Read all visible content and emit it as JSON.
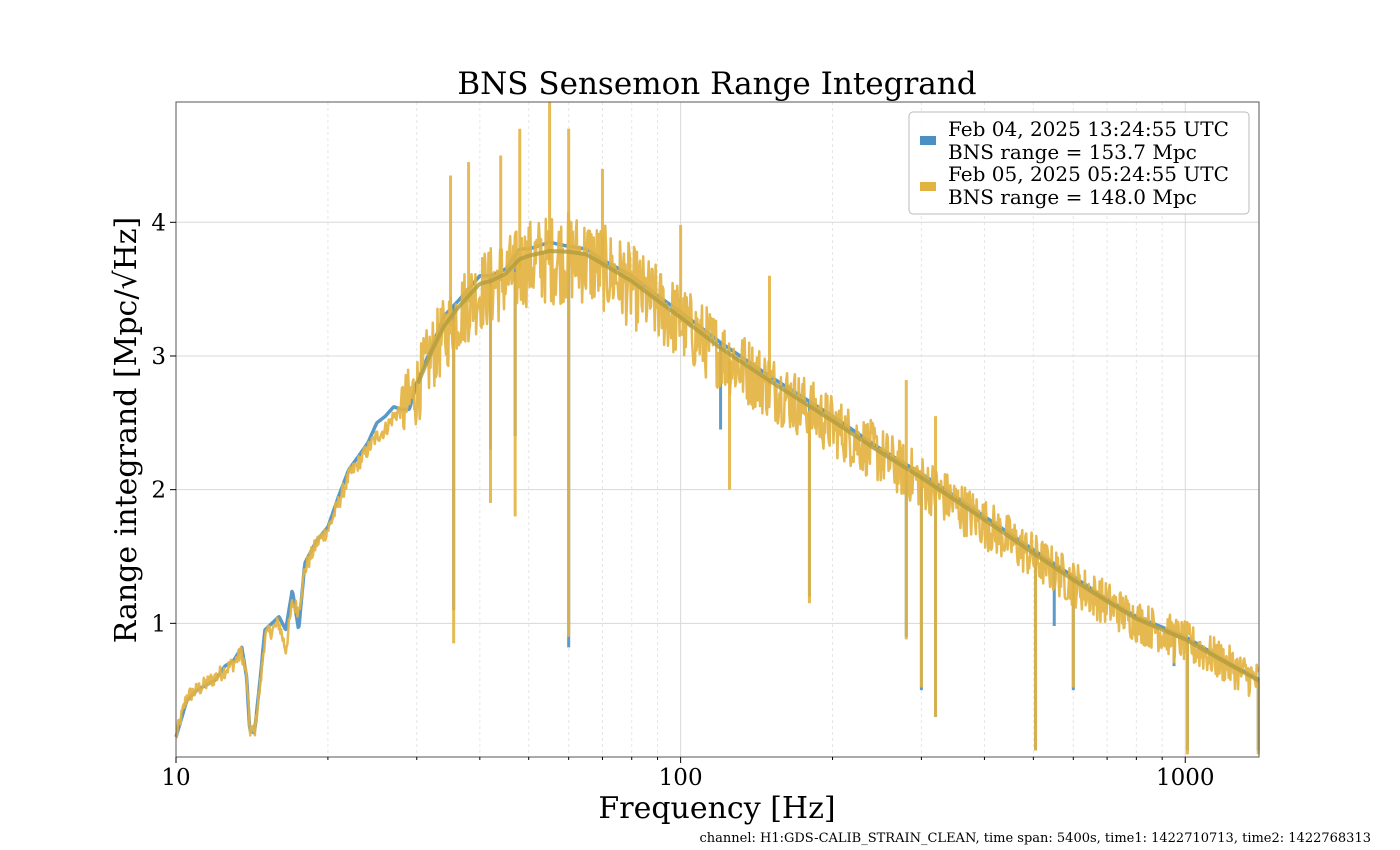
{
  "chart_data": {
    "type": "line",
    "title": "BNS Sensemon Range Integrand",
    "xlabel": "Frequency [Hz]",
    "ylabel": "Range integrand [Mpc/√Hz]",
    "xscale": "log",
    "xlim": [
      10,
      1400
    ],
    "ylim": [
      0,
      4.9
    ],
    "x_ticks": [
      10,
      100,
      1000
    ],
    "x_tick_labels": [
      "10",
      "100",
      "1000"
    ],
    "y_ticks": [
      1,
      2,
      3,
      4
    ],
    "y_tick_labels": [
      "1",
      "2",
      "3",
      "4"
    ],
    "grid": true,
    "legend_position": "top-right",
    "footer": "channel: H1:GDS-CALIB_STRAIN_CLEAN, time span: 5400s, time1: 1422710713, time2: 1422768313",
    "series": [
      {
        "name": "Feb 04, 2025 13:24:55 UTC",
        "range_label": "BNS range = 153.7 Mpc",
        "color": "#4a90c4",
        "points": [
          [
            10,
            0.15
          ],
          [
            10.5,
            0.42
          ],
          [
            11,
            0.5
          ],
          [
            12,
            0.58
          ],
          [
            12.5,
            0.68
          ],
          [
            13,
            0.72
          ],
          [
            13.5,
            0.82
          ],
          [
            13.8,
            0.6
          ],
          [
            14,
            0.2
          ],
          [
            14.3,
            0.18
          ],
          [
            14.7,
            0.6
          ],
          [
            15,
            0.95
          ],
          [
            16,
            1.05
          ],
          [
            16.5,
            0.95
          ],
          [
            17,
            1.25
          ],
          [
            17.5,
            0.95
          ],
          [
            18,
            1.45
          ],
          [
            19,
            1.62
          ],
          [
            20,
            1.72
          ],
          [
            21,
            1.95
          ],
          [
            22,
            2.15
          ],
          [
            23,
            2.25
          ],
          [
            24,
            2.35
          ],
          [
            25,
            2.5
          ],
          [
            26,
            2.55
          ],
          [
            27,
            2.62
          ],
          [
            28,
            2.6
          ],
          [
            29,
            2.6
          ],
          [
            30,
            2.8
          ],
          [
            32,
            3.05
          ],
          [
            34,
            3.3
          ],
          [
            36,
            3.4
          ],
          [
            38,
            3.5
          ],
          [
            40,
            3.6
          ],
          [
            42,
            3.6
          ],
          [
            45,
            3.65
          ],
          [
            48,
            3.8
          ],
          [
            50,
            3.8
          ],
          [
            55,
            3.85
          ],
          [
            60,
            3.82
          ],
          [
            65,
            3.8
          ],
          [
            70,
            3.72
          ],
          [
            80,
            3.6
          ],
          [
            90,
            3.45
          ],
          [
            100,
            3.33
          ],
          [
            120,
            3.1
          ],
          [
            150,
            2.85
          ],
          [
            200,
            2.55
          ],
          [
            250,
            2.3
          ],
          [
            300,
            2.12
          ],
          [
            400,
            1.8
          ],
          [
            500,
            1.55
          ],
          [
            600,
            1.35
          ],
          [
            700,
            1.18
          ],
          [
            800,
            1.05
          ],
          [
            1000,
            0.9
          ],
          [
            1200,
            0.72
          ],
          [
            1400,
            0.58
          ]
        ],
        "dips": [
          [
            35.5,
            1.1
          ],
          [
            42,
            2.3
          ],
          [
            47,
            2.4
          ],
          [
            60,
            0.82
          ],
          [
            120,
            2.45
          ],
          [
            180,
            1.2
          ],
          [
            280,
            0.9
          ],
          [
            300,
            0.5
          ],
          [
            320,
            0.3
          ],
          [
            505,
            0.05
          ],
          [
            550,
            0.98
          ],
          [
            600,
            0.5
          ],
          [
            950,
            0.68
          ],
          [
            1010,
            0.05
          ],
          [
            1395,
            0.05
          ]
        ]
      },
      {
        "name": "Feb 05, 2025 05:24:55 UTC",
        "range_label": "BNS range = 148.0 Mpc",
        "color": "#e3b341",
        "points": [
          [
            10,
            0.15
          ],
          [
            10.5,
            0.45
          ],
          [
            11,
            0.5
          ],
          [
            12,
            0.6
          ],
          [
            12.5,
            0.65
          ],
          [
            13,
            0.7
          ],
          [
            13.5,
            0.78
          ],
          [
            13.8,
            0.6
          ],
          [
            14,
            0.2
          ],
          [
            14.3,
            0.18
          ],
          [
            14.7,
            0.55
          ],
          [
            15,
            0.9
          ],
          [
            16,
            1.0
          ],
          [
            16.5,
            0.8
          ],
          [
            17,
            1.15
          ],
          [
            17.5,
            1.1
          ],
          [
            18,
            1.4
          ],
          [
            19,
            1.6
          ],
          [
            20,
            1.7
          ],
          [
            21,
            1.9
          ],
          [
            22,
            2.1
          ],
          [
            23,
            2.2
          ],
          [
            24,
            2.3
          ],
          [
            25,
            2.4
          ],
          [
            26,
            2.45
          ],
          [
            27,
            2.55
          ],
          [
            28,
            2.6
          ],
          [
            29,
            2.65
          ],
          [
            30,
            2.75
          ],
          [
            32,
            3.0
          ],
          [
            34,
            3.15
          ],
          [
            36,
            3.3
          ],
          [
            38,
            3.4
          ],
          [
            40,
            3.48
          ],
          [
            42,
            3.52
          ],
          [
            45,
            3.58
          ],
          [
            48,
            3.65
          ],
          [
            50,
            3.7
          ],
          [
            55,
            3.72
          ],
          [
            60,
            3.74
          ],
          [
            65,
            3.72
          ],
          [
            70,
            3.66
          ],
          [
            80,
            3.52
          ],
          [
            90,
            3.38
          ],
          [
            100,
            3.25
          ],
          [
            120,
            3.02
          ],
          [
            150,
            2.78
          ],
          [
            200,
            2.48
          ],
          [
            250,
            2.25
          ],
          [
            300,
            2.06
          ],
          [
            400,
            1.75
          ],
          [
            500,
            1.5
          ],
          [
            600,
            1.3
          ],
          [
            700,
            1.15
          ],
          [
            800,
            1.02
          ],
          [
            1000,
            0.86
          ],
          [
            1200,
            0.7
          ],
          [
            1400,
            0.56
          ]
        ],
        "dips": [
          [
            35.5,
            0.85
          ],
          [
            42,
            1.9
          ],
          [
            47,
            1.8
          ],
          [
            60,
            0.9
          ],
          [
            125,
            2.0
          ],
          [
            180,
            1.15
          ],
          [
            280,
            0.88
          ],
          [
            300,
            0.52
          ],
          [
            320,
            0.3
          ],
          [
            505,
            0.05
          ],
          [
            600,
            0.52
          ],
          [
            950,
            0.7
          ],
          [
            1010,
            0.02
          ],
          [
            1395,
            0.02
          ]
        ],
        "spikes": [
          [
            35,
            4.35
          ],
          [
            38,
            4.45
          ],
          [
            44,
            4.5
          ],
          [
            48,
            4.7
          ],
          [
            55,
            4.9
          ],
          [
            60,
            4.7
          ],
          [
            70,
            4.4
          ],
          [
            100,
            3.98
          ],
          [
            150,
            3.6
          ],
          [
            280,
            2.82
          ],
          [
            320,
            2.55
          ]
        ]
      }
    ]
  }
}
